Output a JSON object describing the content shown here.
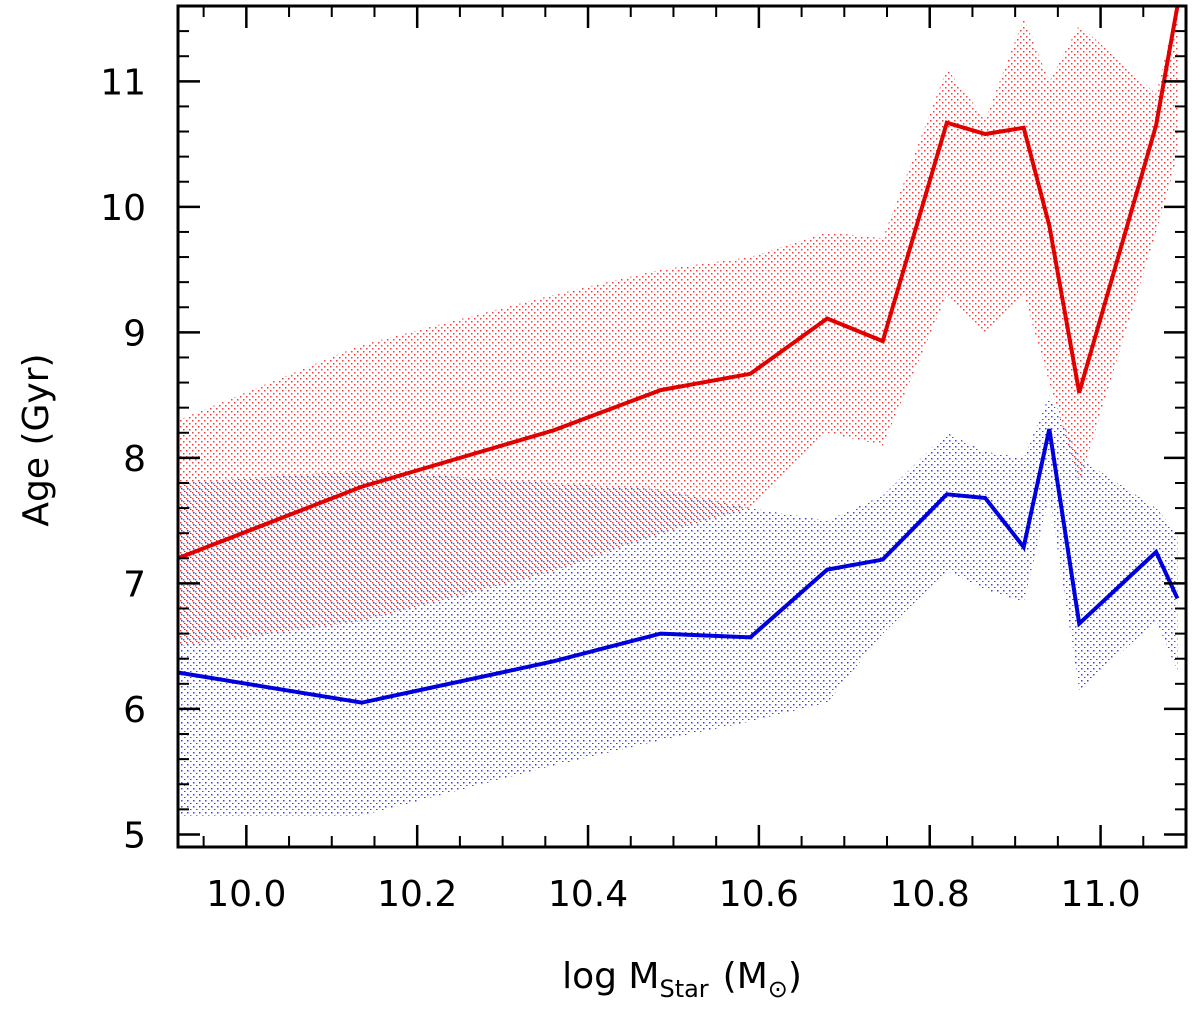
{
  "chart_data": {
    "type": "line",
    "title": "",
    "xlabel": {
      "prefix": "log M",
      "subscript": "Star",
      "unit": "(M",
      "unit_symbol": "⊙",
      "unit_close": ")"
    },
    "ylabel": "Age (Gyr)",
    "xlim": [
      9.92,
      11.1
    ],
    "ylim": [
      4.9,
      11.6
    ],
    "x_ticks": [
      {
        "value": 10.0,
        "label": "10.0"
      },
      {
        "value": 10.2,
        "label": "10.2"
      },
      {
        "value": 10.4,
        "label": "10.4"
      },
      {
        "value": 10.6,
        "label": "10.6"
      },
      {
        "value": 10.8,
        "label": "10.8"
      },
      {
        "value": 11.0,
        "label": "11.0"
      }
    ],
    "x_minor_step": 0.05,
    "y_ticks": [
      {
        "value": 5,
        "label": "5"
      },
      {
        "value": 6,
        "label": "6"
      },
      {
        "value": 7,
        "label": "7"
      },
      {
        "value": 8,
        "label": "8"
      },
      {
        "value": 9,
        "label": "9"
      },
      {
        "value": 10,
        "label": "10"
      },
      {
        "value": 11,
        "label": "11"
      }
    ],
    "y_minor_step": 0.2,
    "grid": false,
    "series": [
      {
        "name": "red",
        "color": "#e00000",
        "x": [
          9.92,
          10.135,
          10.36,
          10.485,
          10.59,
          10.68,
          10.745,
          10.82,
          10.865,
          10.91,
          10.94,
          10.975,
          11.065,
          11.09
        ],
        "values": [
          7.2,
          7.77,
          8.22,
          8.54,
          8.67,
          9.11,
          8.93,
          10.67,
          10.58,
          10.63,
          9.85,
          8.52,
          10.65,
          11.6
        ],
        "band_upper": [
          8.3,
          8.9,
          9.3,
          9.5,
          9.6,
          9.8,
          9.75,
          11.1,
          10.7,
          11.5,
          11.0,
          11.45,
          10.9,
          11.6
        ],
        "band_lower": [
          6.5,
          6.7,
          7.1,
          7.4,
          7.6,
          8.2,
          8.1,
          9.3,
          9.0,
          9.3,
          8.6,
          7.8,
          9.8,
          10.4
        ]
      },
      {
        "name": "blue",
        "color": "#0000dd",
        "x": [
          9.92,
          10.135,
          10.36,
          10.485,
          10.59,
          10.68,
          10.745,
          10.82,
          10.865,
          10.91,
          10.94,
          10.975,
          11.065,
          11.09
        ],
        "values": [
          6.29,
          6.05,
          6.38,
          6.6,
          6.57,
          7.11,
          7.19,
          7.71,
          7.68,
          7.29,
          8.23,
          6.68,
          7.25,
          6.88
        ],
        "band_upper": [
          7.8,
          7.9,
          7.8,
          7.75,
          7.6,
          7.5,
          7.7,
          8.2,
          8.05,
          8.0,
          8.5,
          8.0,
          7.6,
          7.4
        ],
        "band_lower": [
          5.15,
          5.15,
          5.55,
          5.75,
          5.9,
          6.05,
          6.6,
          7.1,
          6.95,
          6.85,
          7.7,
          6.15,
          6.7,
          6.3
        ]
      }
    ]
  }
}
